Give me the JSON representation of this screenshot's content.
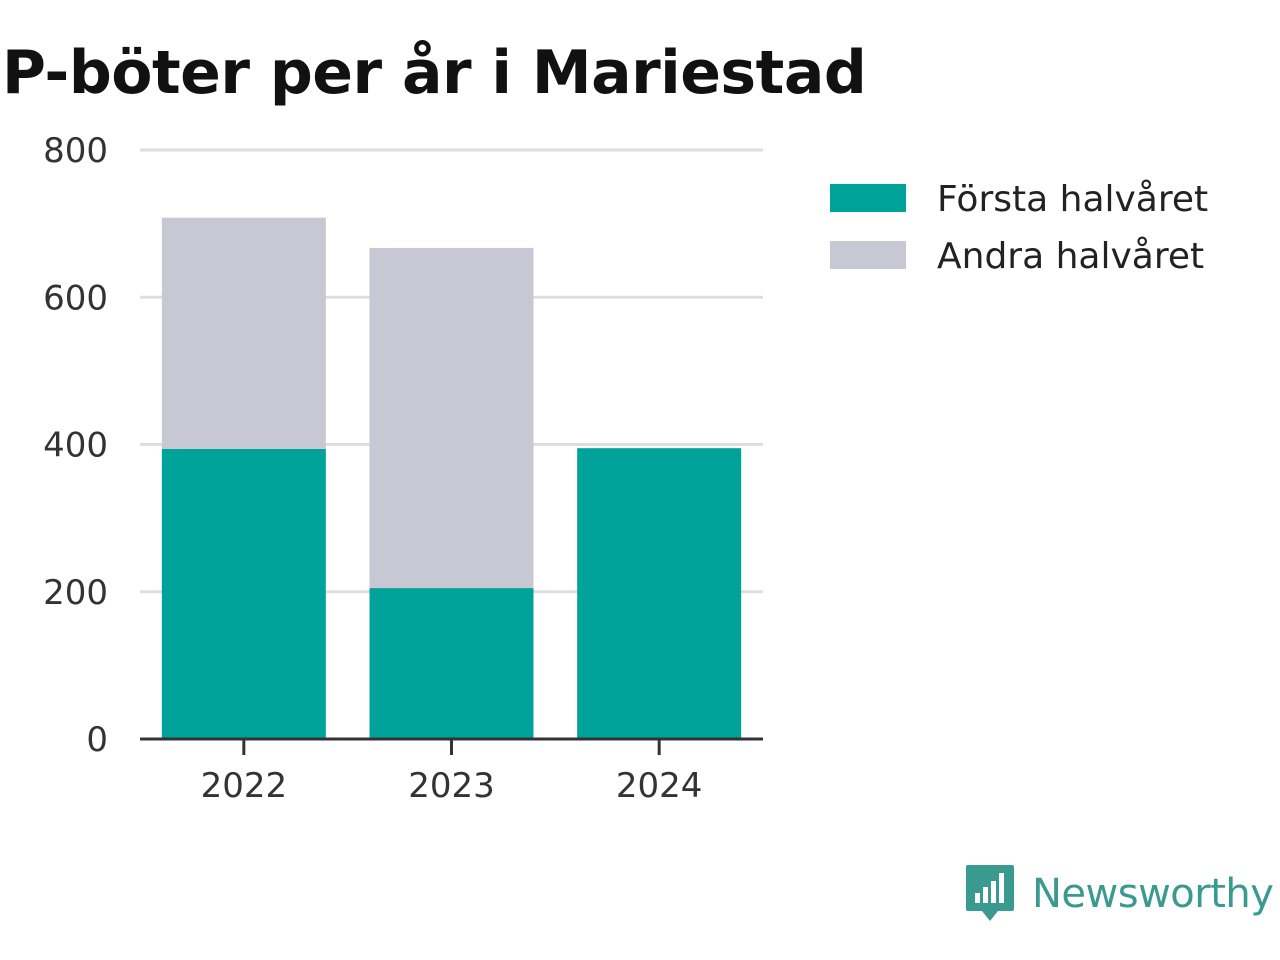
{
  "chart_data": {
    "type": "bar",
    "stacked": true,
    "title": "P-böter per år i Mariestad",
    "categories": [
      "2022",
      "2023",
      "2024"
    ],
    "series": [
      {
        "name": "Första halvåret",
        "values": [
          394,
          205,
          395
        ],
        "color": "#00a39a"
      },
      {
        "name": "Andra halvåret",
        "values": [
          314,
          462,
          0
        ],
        "color": "#c8c7d4"
      }
    ],
    "ylim": [
      0,
      800
    ],
    "yticks": [
      0,
      200,
      400,
      600,
      800
    ],
    "xlabel": "",
    "ylabel": "",
    "grid": true,
    "legend_position": "right"
  },
  "brand": {
    "name": "Newsworthy",
    "icon": "newsworthy-logo-icon",
    "color": "#3a9a90"
  }
}
